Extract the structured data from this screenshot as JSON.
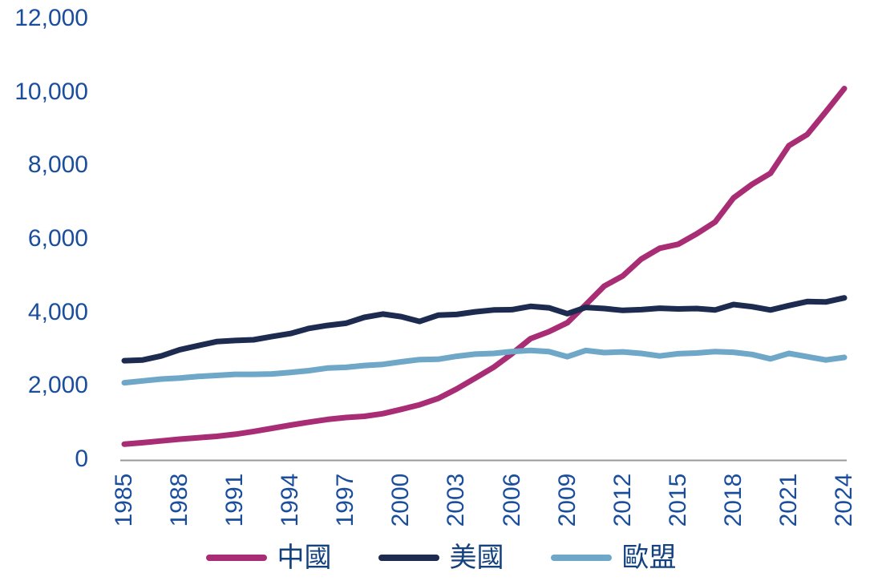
{
  "chart_data": {
    "type": "line",
    "title": "",
    "xlabel": "",
    "ylabel": "",
    "x": [
      1985,
      1986,
      1987,
      1988,
      1989,
      1990,
      1991,
      1992,
      1993,
      1994,
      1995,
      1996,
      1997,
      1998,
      1999,
      2000,
      2001,
      2002,
      2003,
      2004,
      2005,
      2006,
      2007,
      2008,
      2009,
      2010,
      2011,
      2012,
      2013,
      2014,
      2015,
      2016,
      2017,
      2018,
      2019,
      2020,
      2021,
      2022,
      2023,
      2024
    ],
    "x_tick_labels": [
      "1985",
      "1988",
      "1991",
      "1994",
      "1997",
      "2000",
      "2003",
      "2006",
      "2009",
      "2012",
      "2015",
      "2018",
      "2021",
      "2024"
    ],
    "x_ticks": [
      1985,
      1988,
      1991,
      1994,
      1997,
      2000,
      2003,
      2006,
      2009,
      2012,
      2015,
      2018,
      2021,
      2024
    ],
    "y_ticks": [
      0,
      2000,
      4000,
      6000,
      8000,
      10000,
      12000
    ],
    "y_tick_labels": [
      "0",
      "2,000",
      "4,000",
      "6,000",
      "8,000",
      "10,000",
      "12,000"
    ],
    "ylim": [
      0,
      12000
    ],
    "xlim": [
      1985,
      2024
    ],
    "grid": false,
    "legend_position": "bottom",
    "series": [
      {
        "name": "中國",
        "color": "#A82D74",
        "values": [
          411,
          450,
          497,
          545,
          585,
          621,
          678,
          754,
          839,
          928,
          1008,
          1081,
          1135,
          1167,
          1239,
          1356,
          1481,
          1654,
          1911,
          2203,
          2500,
          2870,
          3280,
          3470,
          3715,
          4207,
          4713,
          4988,
          5447,
          5740,
          5850,
          6133,
          6453,
          7111,
          7482,
          7779,
          8534,
          8840,
          9456,
          10087
        ]
      },
      {
        "name": "美國",
        "color": "#1C2B4F",
        "values": [
          2680,
          2700,
          2810,
          2980,
          3090,
          3200,
          3230,
          3250,
          3340,
          3420,
          3560,
          3640,
          3700,
          3860,
          3950,
          3880,
          3750,
          3920,
          3940,
          4010,
          4060,
          4070,
          4160,
          4120,
          3960,
          4130,
          4100,
          4050,
          4070,
          4110,
          4090,
          4100,
          4060,
          4210,
          4150,
          4060,
          4180,
          4290,
          4280,
          4390
        ]
      },
      {
        "name": "歐盟",
        "color": "#6EA7C7",
        "values": [
          2080,
          2130,
          2180,
          2210,
          2250,
          2280,
          2310,
          2310,
          2320,
          2360,
          2410,
          2480,
          2500,
          2550,
          2580,
          2650,
          2710,
          2720,
          2800,
          2860,
          2880,
          2930,
          2960,
          2930,
          2790,
          2960,
          2900,
          2920,
          2880,
          2810,
          2870,
          2890,
          2930,
          2910,
          2850,
          2730,
          2880,
          2790,
          2700,
          2770
        ]
      }
    ]
  },
  "colors": {
    "tick_label": "#1A4E9C",
    "legend_label": "#14427F",
    "axis_line": "#999999",
    "background": "#FFFFFF"
  }
}
